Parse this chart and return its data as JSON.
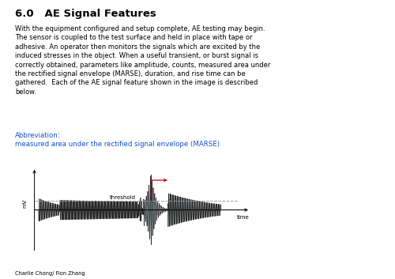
{
  "title": "6.0   AE Signal Features",
  "body_text": "With the equipment configured and setup complete, AE testing may begin.\nThe sensor is coupled to the test surface and held in place with tape or\nadhesive. An operator then monitors the signals which are excited by the\ninduced stresses in the object. When a useful transient, or burst signal is\ncorrectly obtained, parameters like amplitude, counts, measured area under\nthe rectified signal envelope (MARSE), duration, and rise time can be\ngathered.  Each of the AE signal feature shown in the image is described\nbelow.",
  "abbrev_label": "Abbreviation:",
  "abbrev_text": "measured area under the rectified signal envelope (MARSE)",
  "abbrev_color": "#1155CC",
  "footer_text": "Charlie Chong/ Fion Zhang",
  "threshold_label": "threshold",
  "time_label": "time",
  "mv_label": "mV",
  "background_color": "#ffffff",
  "signal_color": "#1a1a1a",
  "fill_color": "#00AAAA",
  "threshold_color": "#999999",
  "red_arrow_color": "#cc0000",
  "title_fontsize": 9.5,
  "body_fontsize": 6.0,
  "abbrev_fontsize": 6.2,
  "label_fontsize": 5.0,
  "footer_fontsize": 4.8
}
